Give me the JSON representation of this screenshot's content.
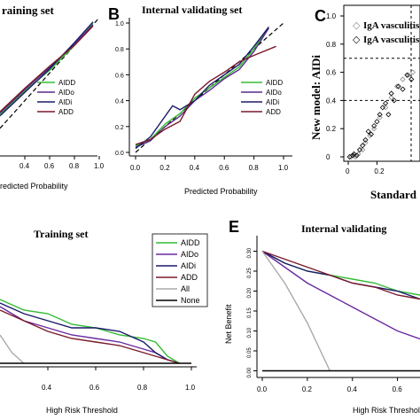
{
  "chart_data": [
    {
      "panel": "A",
      "type": "line",
      "title": "Training set",
      "xlabel": "Predicted Probability",
      "xtick_labels": [
        "0.4",
        "0.6",
        "0.8",
        "1.0"
      ],
      "xlim": [
        0.2,
        1.0
      ],
      "ylim": [
        0.0,
        1.0
      ],
      "legend": [
        "AIDD",
        "AIDo",
        "AIDi",
        "ADD"
      ],
      "colors": {
        "AIDD": "#33bb33",
        "AIDo": "#5a2a8a",
        "AIDi": "#1a1a6a",
        "ADD": "#7a1a2a",
        "ideal": "#000000"
      },
      "series": [
        {
          "name": "AIDD",
          "x": [
            0.2,
            0.4,
            0.6,
            0.8,
            0.95
          ],
          "y": [
            0.3,
            0.47,
            0.62,
            0.8,
            0.96
          ]
        },
        {
          "name": "AIDo",
          "x": [
            0.2,
            0.4,
            0.6,
            0.8,
            0.95
          ],
          "y": [
            0.31,
            0.48,
            0.64,
            0.81,
            0.95
          ]
        },
        {
          "name": "AIDi",
          "x": [
            0.2,
            0.4,
            0.6,
            0.8,
            0.95
          ],
          "y": [
            0.29,
            0.46,
            0.63,
            0.82,
            0.97
          ]
        },
        {
          "name": "ADD",
          "x": [
            0.2,
            0.4,
            0.6,
            0.8,
            0.95
          ],
          "y": [
            0.32,
            0.49,
            0.65,
            0.8,
            0.94
          ]
        }
      ]
    },
    {
      "panel": "B",
      "type": "line",
      "title": "Internal validating set",
      "xlabel": "Predicted Probability",
      "ylabel": "",
      "xtick_labels": [
        "0.0",
        "0.2",
        "0.4",
        "0.6",
        "0.8",
        "1.0"
      ],
      "ytick_labels": [
        "0.0",
        "0.2",
        "0.4",
        "0.6",
        "0.8",
        "1.0"
      ],
      "xlim": [
        0.0,
        1.0
      ],
      "ylim": [
        0.0,
        1.0
      ],
      "legend": [
        "AIDD",
        "AIDo",
        "AIDi",
        "ADD"
      ],
      "colors": {
        "AIDD": "#33bb33",
        "AIDo": "#5a2a8a",
        "AIDi": "#1a1a6a",
        "ADD": "#7a1a2a",
        "ideal": "#000000"
      },
      "series": [
        {
          "name": "AIDD",
          "x": [
            0.0,
            0.1,
            0.2,
            0.3,
            0.4,
            0.5,
            0.6,
            0.7,
            0.8,
            0.9
          ],
          "y": [
            0.05,
            0.1,
            0.22,
            0.3,
            0.42,
            0.5,
            0.58,
            0.66,
            0.8,
            0.97
          ]
        },
        {
          "name": "AIDo",
          "x": [
            0.0,
            0.1,
            0.2,
            0.3,
            0.4,
            0.5,
            0.6,
            0.7,
            0.8,
            0.9
          ],
          "y": [
            0.04,
            0.09,
            0.2,
            0.28,
            0.4,
            0.48,
            0.57,
            0.64,
            0.78,
            0.96
          ]
        },
        {
          "name": "AIDi",
          "x": [
            0.0,
            0.1,
            0.2,
            0.25,
            0.3,
            0.4,
            0.5,
            0.6,
            0.7,
            0.8,
            0.9
          ],
          "y": [
            0.03,
            0.12,
            0.28,
            0.36,
            0.33,
            0.4,
            0.52,
            0.6,
            0.68,
            0.82,
            0.97
          ]
        },
        {
          "name": "ADD",
          "x": [
            0.0,
            0.1,
            0.2,
            0.3,
            0.4,
            0.5,
            0.6,
            0.7,
            0.8,
            0.95
          ],
          "y": [
            0.06,
            0.1,
            0.18,
            0.24,
            0.45,
            0.55,
            0.62,
            0.7,
            0.75,
            0.82
          ]
        }
      ]
    },
    {
      "panel": "C",
      "type": "scatter",
      "ylabel": "New model: AIDi",
      "xlabel": "Standard",
      "ytick_labels": [
        "0",
        "0.2",
        "0.4",
        "0.6",
        "0.8",
        "1.0"
      ],
      "xtick_labels": [
        "0",
        "0.2"
      ],
      "xlim": [
        0.0,
        0.5
      ],
      "ylim": [
        0.0,
        1.0
      ],
      "legend": [
        "IgA vasculitis",
        "IgA vasculitis"
      ],
      "threshold_lines_y": [
        0.4,
        0.7
      ],
      "series": [
        {
          "name": "IgA vasculitis",
          "marker": "open-diamond-gray",
          "x": [
            0.02,
            0.04,
            0.05,
            0.07,
            0.1,
            0.12,
            0.15,
            0.18,
            0.22,
            0.26,
            0.3,
            0.34,
            0.38,
            0.42,
            0.45
          ],
          "y": [
            0.0,
            0.01,
            0.0,
            0.02,
            0.05,
            0.1,
            0.15,
            0.2,
            0.28,
            0.35,
            0.42,
            0.5,
            0.55,
            0.58,
            0.6
          ]
        },
        {
          "name": "IgA vasculitis",
          "marker": "open-diamond-black",
          "x": [
            0.01,
            0.03,
            0.04,
            0.06,
            0.08,
            0.1,
            0.12,
            0.14,
            0.16,
            0.18,
            0.2,
            0.22,
            0.24,
            0.26,
            0.28,
            0.3,
            0.32,
            0.35,
            0.38,
            0.41,
            0.44
          ],
          "y": [
            0.0,
            0.01,
            0.02,
            0.01,
            0.05,
            0.08,
            0.12,
            0.18,
            0.16,
            0.22,
            0.25,
            0.3,
            0.35,
            0.38,
            0.3,
            0.45,
            0.4,
            0.5,
            0.48,
            0.58,
            0.55
          ]
        }
      ]
    },
    {
      "panel": "D",
      "type": "line",
      "title": "Training set",
      "xlabel": "High Risk Threshold",
      "xtick_labels": [
        "0.4",
        "0.6",
        "0.8",
        "1.0"
      ],
      "xlim": [
        0.2,
        1.0
      ],
      "ylim": [
        -0.05,
        0.35
      ],
      "legend": [
        "AIDD",
        "AIDo",
        "AIDi",
        "ADD",
        "All",
        "None"
      ],
      "colors": {
        "AIDD": "#33bb33",
        "AIDo": "#6a2aa0",
        "AIDi": "#1a1a6a",
        "ADD": "#7a1a2a",
        "All": "#aaaaaa",
        "None": "#000000"
      },
      "series": [
        {
          "name": "AIDD",
          "x": [
            0.2,
            0.3,
            0.4,
            0.5,
            0.6,
            0.7,
            0.8,
            0.85,
            0.9,
            0.95
          ],
          "y": [
            0.18,
            0.15,
            0.14,
            0.11,
            0.1,
            0.08,
            0.07,
            0.06,
            0.02,
            0.0
          ]
        },
        {
          "name": "AIDo",
          "x": [
            0.2,
            0.3,
            0.4,
            0.5,
            0.6,
            0.7,
            0.8,
            0.85,
            0.9,
            0.95
          ],
          "y": [
            0.16,
            0.12,
            0.1,
            0.08,
            0.07,
            0.06,
            0.04,
            0.03,
            0.01,
            0.0
          ]
        },
        {
          "name": "AIDi",
          "x": [
            0.2,
            0.3,
            0.4,
            0.5,
            0.6,
            0.7,
            0.8,
            0.85,
            0.9,
            0.95
          ],
          "y": [
            0.17,
            0.14,
            0.12,
            0.1,
            0.1,
            0.09,
            0.06,
            0.03,
            0.01,
            0.0
          ]
        },
        {
          "name": "ADD",
          "x": [
            0.2,
            0.3,
            0.4,
            0.5,
            0.6,
            0.7,
            0.8,
            0.85,
            0.9,
            0.95
          ],
          "y": [
            0.15,
            0.12,
            0.09,
            0.07,
            0.06,
            0.05,
            0.03,
            0.02,
            0.01,
            0.0
          ]
        },
        {
          "name": "All",
          "x": [
            0.2,
            0.25,
            0.3
          ],
          "y": [
            0.08,
            0.03,
            0.0
          ]
        },
        {
          "name": "None",
          "x": [
            0.2,
            1.0
          ],
          "y": [
            0.0,
            0.0
          ]
        }
      ]
    },
    {
      "panel": "E",
      "type": "line",
      "title": "Internal validating",
      "xlabel": "High Risk Threshold",
      "ylabel": "Net Benefit",
      "xtick_labels": [
        "0.0",
        "0.2",
        "0.4",
        "0.6"
      ],
      "ytick_labels": [
        "0.00",
        "0.05",
        "0.10",
        "0.15",
        "0.20",
        "0.25",
        "0.30"
      ],
      "xlim": [
        0.0,
        0.7
      ],
      "ylim": [
        -0.03,
        0.33
      ],
      "colors": {
        "AIDD": "#33bb33",
        "AIDo": "#6a2aa0",
        "AIDi": "#1a1a6a",
        "ADD": "#7a1a2a",
        "All": "#aaaaaa",
        "None": "#000000"
      },
      "series": [
        {
          "name": "AIDD",
          "x": [
            0.0,
            0.1,
            0.2,
            0.3,
            0.4,
            0.5,
            0.6,
            0.7
          ],
          "y": [
            0.3,
            0.27,
            0.25,
            0.24,
            0.23,
            0.22,
            0.2,
            0.19
          ]
        },
        {
          "name": "AIDo",
          "x": [
            0.0,
            0.1,
            0.2,
            0.3,
            0.4,
            0.5,
            0.6,
            0.7
          ],
          "y": [
            0.3,
            0.26,
            0.22,
            0.19,
            0.16,
            0.13,
            0.1,
            0.08
          ]
        },
        {
          "name": "AIDi",
          "x": [
            0.0,
            0.1,
            0.2,
            0.3,
            0.4,
            0.5,
            0.6,
            0.7
          ],
          "y": [
            0.3,
            0.27,
            0.25,
            0.24,
            0.22,
            0.21,
            0.2,
            0.18
          ]
        },
        {
          "name": "ADD",
          "x": [
            0.0,
            0.1,
            0.2,
            0.3,
            0.4,
            0.5,
            0.6,
            0.7
          ],
          "y": [
            0.3,
            0.28,
            0.26,
            0.24,
            0.22,
            0.21,
            0.19,
            0.18
          ]
        },
        {
          "name": "All",
          "x": [
            0.0,
            0.1,
            0.2,
            0.3
          ],
          "y": [
            0.3,
            0.22,
            0.12,
            0.0
          ]
        },
        {
          "name": "None",
          "x": [
            0.0,
            0.7
          ],
          "y": [
            0.0,
            0.0
          ]
        }
      ]
    }
  ],
  "labels": {
    "B": "B",
    "C": "C",
    "E": "E",
    "A_title": "raining set",
    "B_title": "Internal validating set",
    "C_ylabel": "New model: AIDi",
    "C_xlabel": "Standard",
    "C_legend1": "IgA vasculitis",
    "C_legend2": "IgA vasculitis",
    "D_title": "Training set",
    "E_title": "Internal validating",
    "A_xlabel": "redicted Probability",
    "B_xlabel": "Predicted Probability",
    "D_xlabel": "High Risk Threshold",
    "E_xlabel": "High Risk Threshold",
    "E_ylabel": "Net Benefit"
  }
}
